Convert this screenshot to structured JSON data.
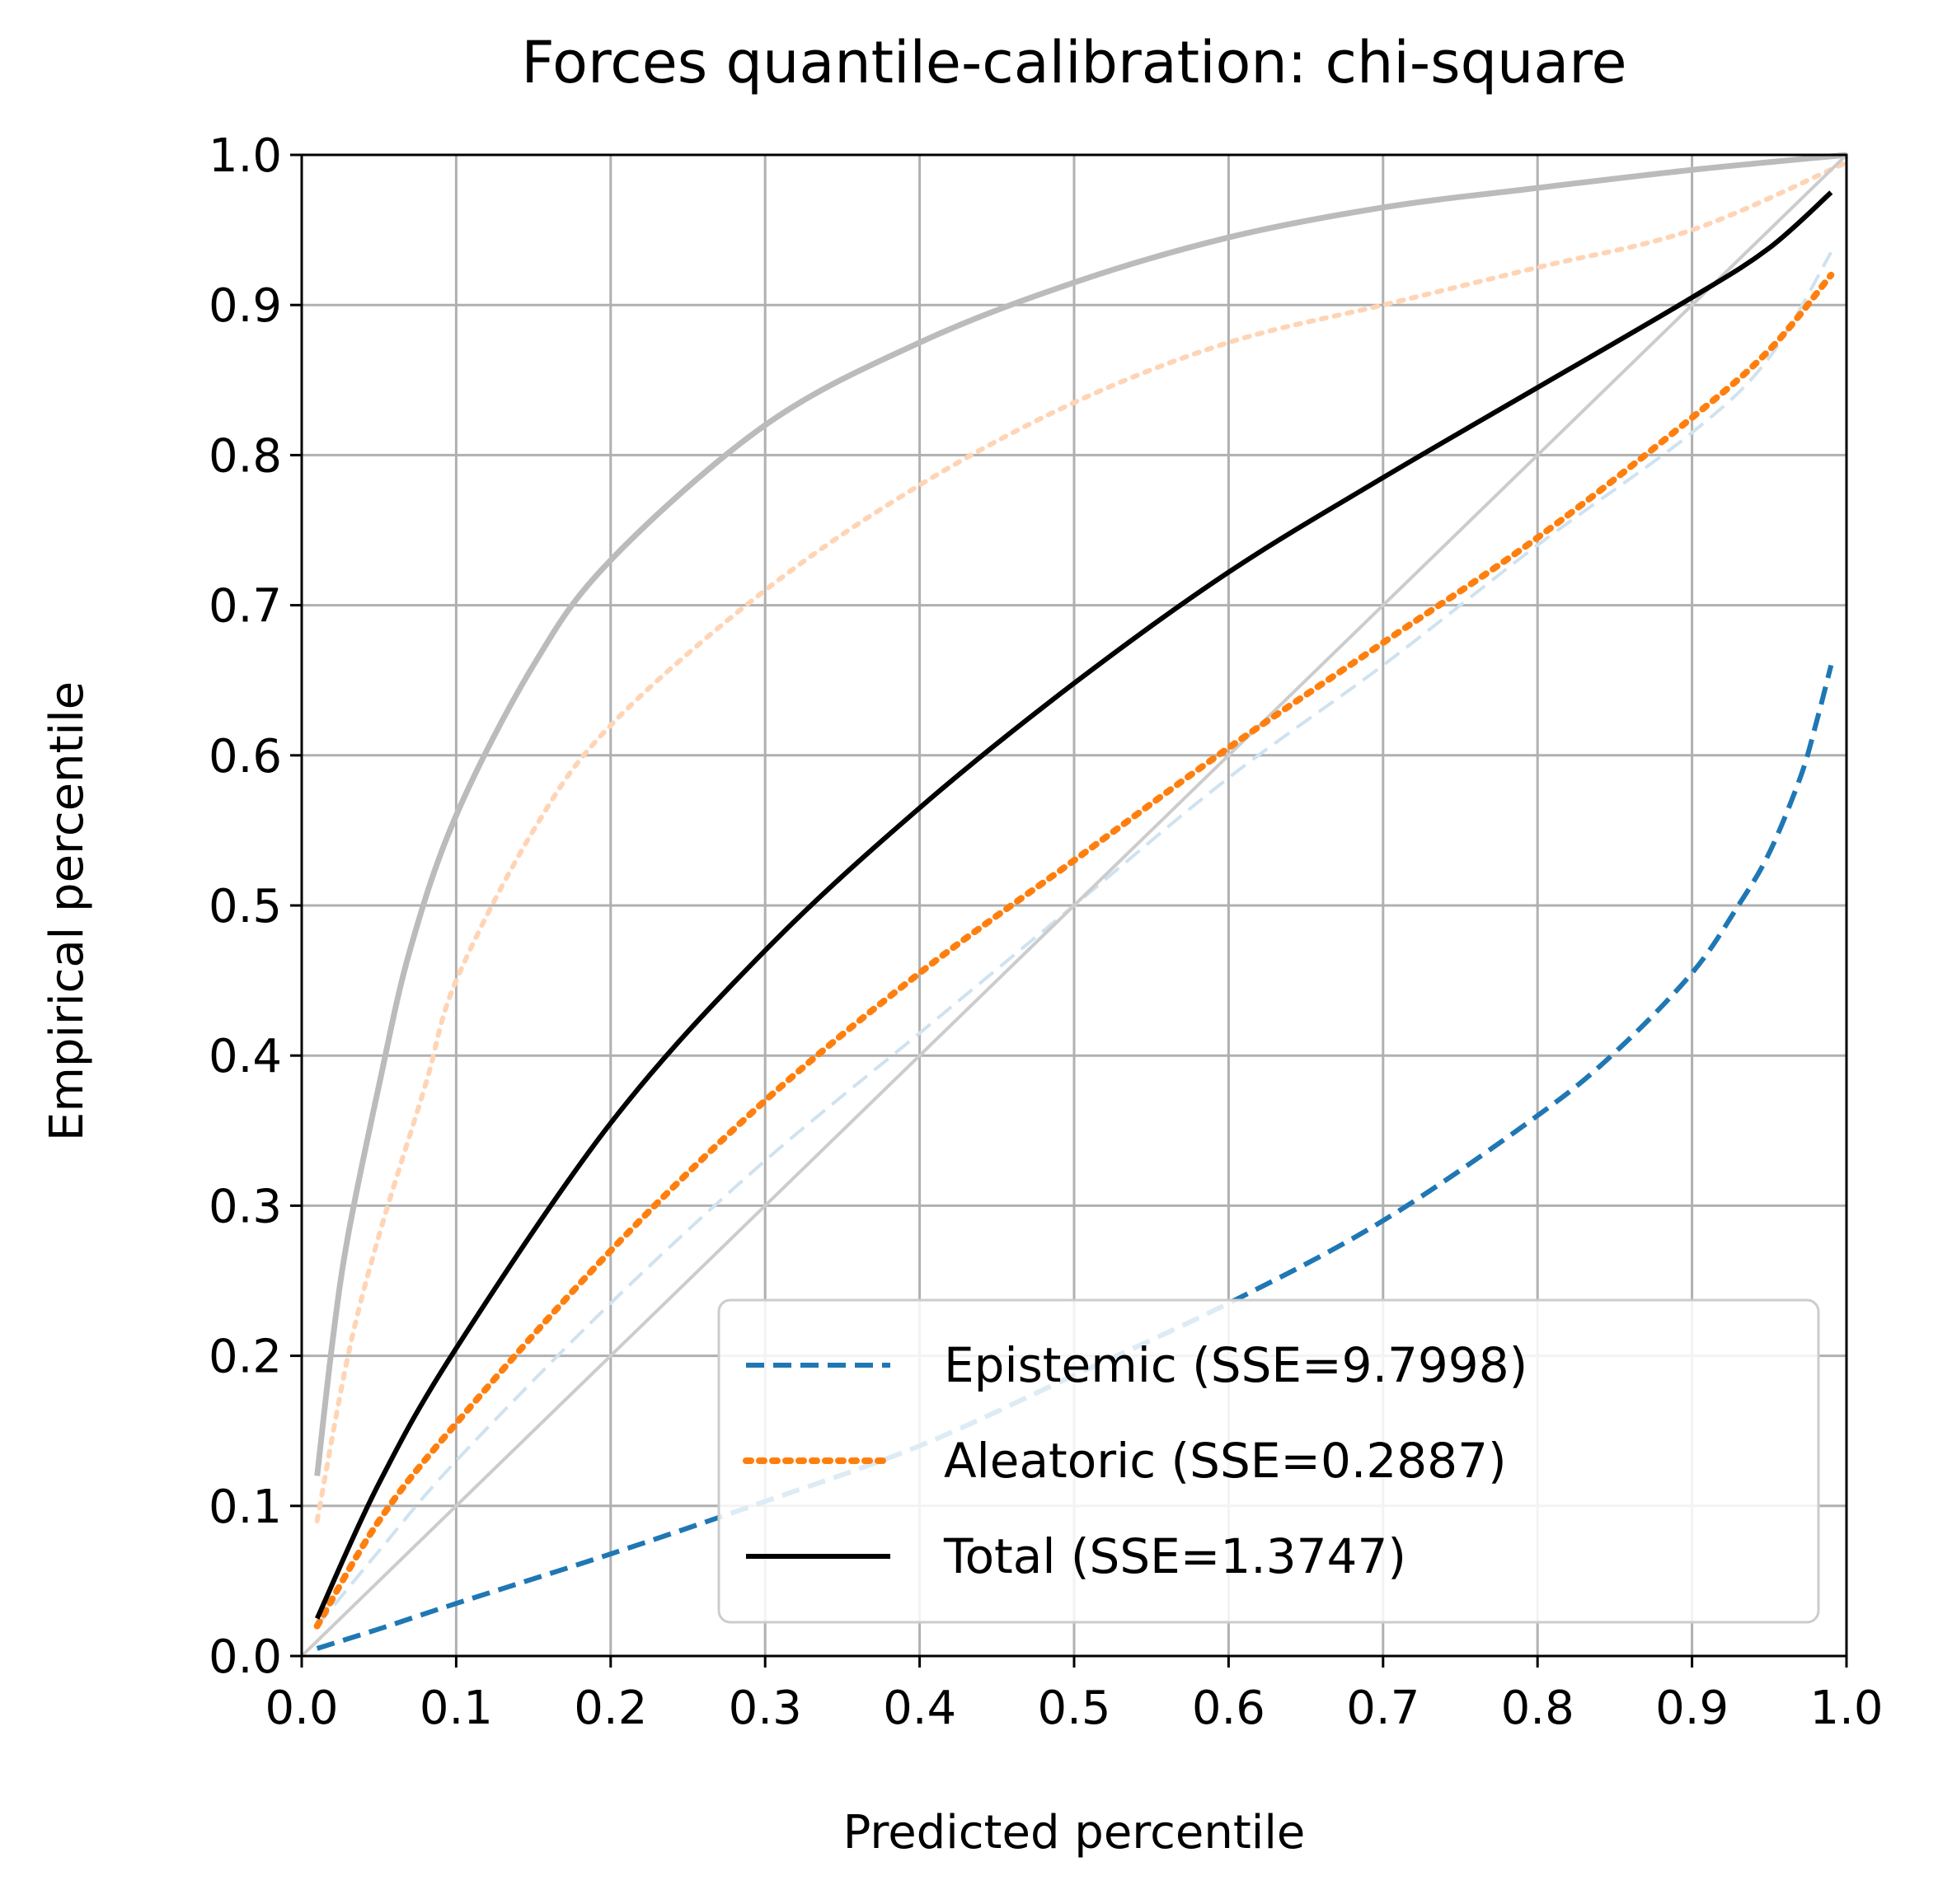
{
  "chart_data": {
    "type": "line",
    "title": "Forces quantile-calibration: chi-square",
    "xlabel": "Predicted percentile",
    "ylabel": "Empirical percentile",
    "xlim": [
      0.0,
      1.0
    ],
    "ylim": [
      0.0,
      1.0
    ],
    "xticks": [
      "0.0",
      "0.1",
      "0.2",
      "0.3",
      "0.4",
      "0.5",
      "0.6",
      "0.7",
      "0.8",
      "0.9",
      "1.0"
    ],
    "yticks": [
      "0.0",
      "0.1",
      "0.2",
      "0.3",
      "0.4",
      "0.5",
      "0.6",
      "0.7",
      "0.8",
      "0.9",
      "1.0"
    ],
    "grid": true,
    "legend_position": "lower-right",
    "series": [
      {
        "name": "Epistemic (SSE=9.7998)",
        "color": "#1f77b4",
        "style": "dashed",
        "x": [
          0.01,
          0.05,
          0.1,
          0.2,
          0.3,
          0.4,
          0.5,
          0.6,
          0.7,
          0.8,
          0.85,
          0.9,
          0.93,
          0.95,
          0.97,
          0.98,
          0.99
        ],
        "y": [
          0.005,
          0.018,
          0.035,
          0.068,
          0.103,
          0.14,
          0.187,
          0.235,
          0.29,
          0.36,
          0.402,
          0.455,
          0.5,
          0.535,
          0.585,
          0.62,
          0.66
        ]
      },
      {
        "name": "Aleatoric (SSE=0.2887)",
        "color": "#ff7f0e",
        "style": "dotted",
        "x": [
          0.01,
          0.05,
          0.1,
          0.2,
          0.3,
          0.4,
          0.5,
          0.6,
          0.7,
          0.8,
          0.9,
          0.95,
          0.99
        ],
        "y": [
          0.02,
          0.09,
          0.155,
          0.27,
          0.37,
          0.455,
          0.53,
          0.605,
          0.675,
          0.745,
          0.825,
          0.87,
          0.92
        ]
      },
      {
        "name": "Total (SSE=1.3747)",
        "color": "#000000",
        "style": "solid",
        "x": [
          0.01,
          0.05,
          0.1,
          0.2,
          0.3,
          0.4,
          0.5,
          0.6,
          0.7,
          0.8,
          0.9,
          0.95,
          0.99
        ],
        "y": [
          0.025,
          0.115,
          0.205,
          0.355,
          0.47,
          0.565,
          0.648,
          0.722,
          0.785,
          0.845,
          0.905,
          0.938,
          0.975
        ]
      }
    ],
    "background_series": [
      {
        "color": "#bbbbbb",
        "style": "solid",
        "x": [
          0.01,
          0.02,
          0.03,
          0.05,
          0.07,
          0.1,
          0.15,
          0.2,
          0.3,
          0.4,
          0.5,
          0.6,
          0.7,
          0.8,
          0.9,
          1.0
        ],
        "y": [
          0.12,
          0.21,
          0.28,
          0.38,
          0.47,
          0.56,
          0.66,
          0.73,
          0.82,
          0.875,
          0.915,
          0.945,
          0.965,
          0.978,
          0.99,
          1.0
        ]
      },
      {
        "color": "#ffd4b4",
        "style": "dotted",
        "x": [
          0.01,
          0.03,
          0.05,
          0.08,
          0.1,
          0.15,
          0.2,
          0.3,
          0.4,
          0.5,
          0.6,
          0.7,
          0.8,
          0.9,
          1.0
        ],
        "y": [
          0.09,
          0.2,
          0.28,
          0.38,
          0.45,
          0.55,
          0.62,
          0.71,
          0.78,
          0.835,
          0.875,
          0.9,
          0.925,
          0.95,
          0.995
        ]
      },
      {
        "color": "#cfe2f0",
        "style": "dashed",
        "x": [
          0.01,
          0.05,
          0.1,
          0.2,
          0.3,
          0.4,
          0.5,
          0.6,
          0.7,
          0.8,
          0.9,
          0.95,
          0.99
        ],
        "y": [
          0.02,
          0.07,
          0.13,
          0.235,
          0.33,
          0.415,
          0.5,
          0.585,
          0.66,
          0.74,
          0.815,
          0.865,
          0.935
        ]
      },
      {
        "color": "#cccccc",
        "style": "solid",
        "x": [
          0.0,
          1.0
        ],
        "y": [
          0.0,
          1.0
        ]
      }
    ]
  }
}
